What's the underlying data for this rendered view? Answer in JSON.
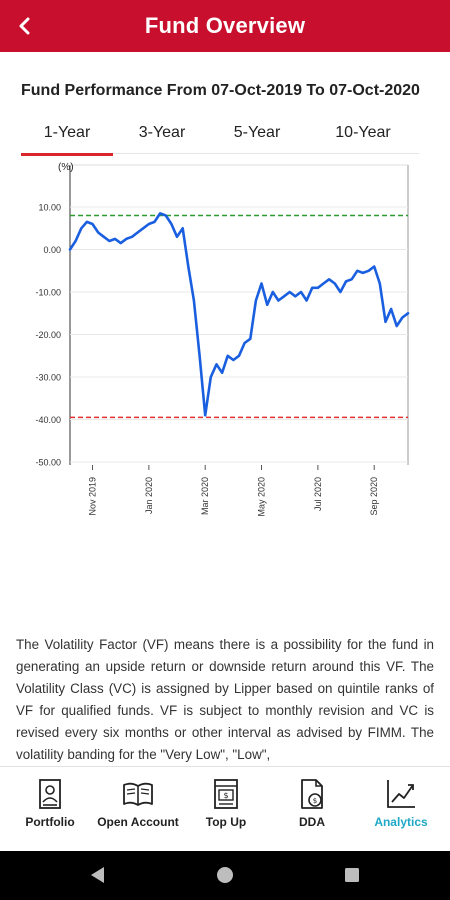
{
  "header": {
    "title": "Fund Overview",
    "back_icon": "chevron-left-icon"
  },
  "performance": {
    "title": "Fund Performance From 07-Oct-2019 To 07-Oct-2020",
    "tabs": [
      {
        "label": "1-Year",
        "active": true
      },
      {
        "label": "3-Year",
        "active": false
      },
      {
        "label": "5-Year",
        "active": false
      },
      {
        "label": "10-Year",
        "active": false
      }
    ]
  },
  "chart_data": {
    "type": "line",
    "ylabel": "(%)",
    "ylim": [
      -50,
      12
    ],
    "yticks": [
      "10.00",
      "0.00",
      "-10.00",
      "-20.00",
      "-30.00",
      "-40.00",
      "-50.00"
    ],
    "ytick_values": [
      10,
      0,
      -10,
      -20,
      -30,
      -40,
      -50
    ],
    "xticks": [
      "Nov 2019",
      "Jan 2020",
      "Mar 2020",
      "May 2020",
      "Jul 2020",
      "Sep 2020"
    ],
    "xtick_months": [
      1,
      3,
      5,
      7,
      9,
      11
    ],
    "x_range_months": [
      0.2,
      12.2
    ],
    "grid": "horizontal",
    "reference_lines": [
      {
        "value": 8.0,
        "color": "#2e9b2e",
        "style": "dashed"
      },
      {
        "value": -39.5,
        "color": "#e03030",
        "style": "dashed"
      }
    ],
    "series": [
      {
        "color": "#1a5fe0",
        "x": [
          0.2,
          0.4,
          0.6,
          0.8,
          1.0,
          1.2,
          1.4,
          1.6,
          1.8,
          2.0,
          2.2,
          2.4,
          2.6,
          2.8,
          3.0,
          3.2,
          3.4,
          3.6,
          3.8,
          4.0,
          4.2,
          4.4,
          4.6,
          4.8,
          5.0,
          5.2,
          5.4,
          5.6,
          5.8,
          6.0,
          6.2,
          6.4,
          6.6,
          6.8,
          7.0,
          7.2,
          7.4,
          7.6,
          7.8,
          8.0,
          8.2,
          8.4,
          8.6,
          8.8,
          9.0,
          9.2,
          9.4,
          9.6,
          9.8,
          10.0,
          10.2,
          10.4,
          10.6,
          10.8,
          11.0,
          11.2,
          11.4,
          11.6,
          11.8,
          12.0,
          12.2
        ],
        "values": [
          0,
          2,
          5,
          6.5,
          6,
          4,
          3,
          2,
          2.5,
          1.5,
          2.5,
          3,
          4,
          5,
          6,
          6.5,
          8.5,
          8,
          6,
          3,
          5,
          -4,
          -12,
          -25,
          -39,
          -30,
          -27,
          -29,
          -25,
          -26,
          -25,
          -22,
          -21,
          -12,
          -8,
          -13,
          -10,
          -12,
          -11,
          -10,
          -11,
          -10,
          -12,
          -9,
          -9,
          -8,
          -7,
          -8,
          -10,
          -7.5,
          -7,
          -5,
          -5.5,
          -5,
          -4,
          -8,
          -17,
          -14,
          -18,
          -16,
          -15
        ]
      }
    ]
  },
  "description": "The Volatility Factor (VF) means there is a possibility for the fund in generating an upside return or downside return around this VF. The Volatility Class (VC) is assigned by Lipper based on quintile ranks of VF for qualified funds. VF is subject to monthly revision and VC is revised every six months or other interval as advised by FIMM. The volatility banding for the \"Very Low\", \"Low\",",
  "bottom_nav": [
    {
      "label": "Portfolio",
      "icon": "portfolio-icon",
      "active": false
    },
    {
      "label": "Open Account",
      "icon": "open-book-icon",
      "active": false
    },
    {
      "label": "Top Up",
      "icon": "top-up-icon",
      "active": false
    },
    {
      "label": "DDA",
      "icon": "dda-icon",
      "active": false
    },
    {
      "label": "Analytics",
      "icon": "analytics-icon",
      "active": true
    }
  ],
  "colors": {
    "brand": "#c8102e",
    "active_tab": "#d9262c",
    "active_nav": "#1fa8c6",
    "line": "#1a5fe0"
  }
}
